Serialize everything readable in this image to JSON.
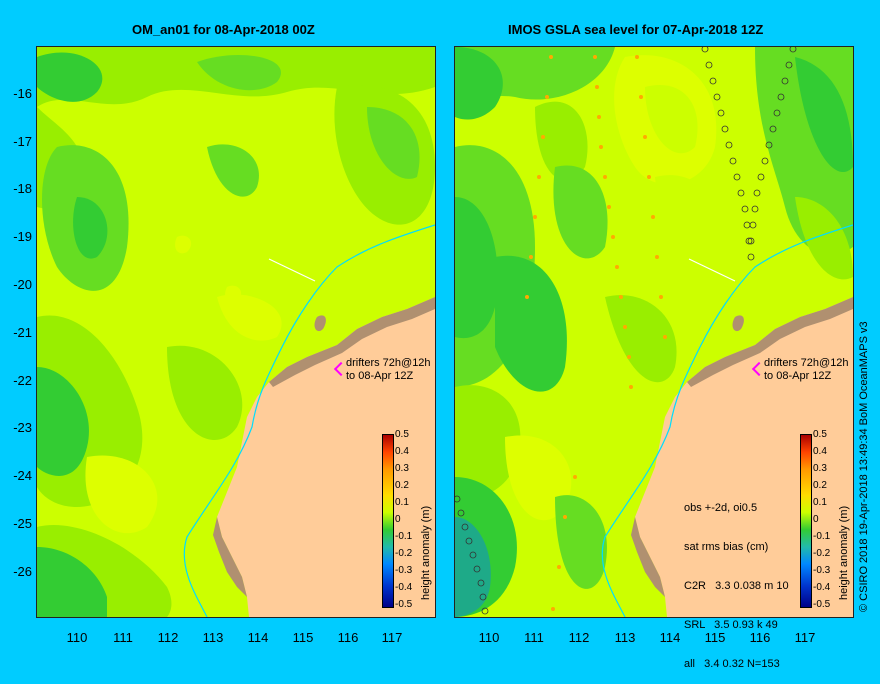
{
  "left_panel": {
    "title": "OM_an01 for 08-Apr-2018 00Z",
    "drifters_line1": "drifters 72h@12h",
    "drifters_line2": "to 08-Apr 12Z"
  },
  "right_panel": {
    "title": "IMOS GSLA sea level  for 07-Apr-2018 12Z",
    "drifters_line1": "drifters 72h@12h",
    "drifters_line2": "to 08-Apr 12Z",
    "stats": {
      "line1": "obs +-2d, oi0.5",
      "line2": "sat rms bias (cm)",
      "line3": "C2R   3.3 0.038 m 10",
      "line4": "SRL   3.5 0.93 k 49",
      "line5": "all   3.4 0.32 N=153"
    }
  },
  "y_ticks": [
    "-16",
    "-17",
    "-18",
    "-19",
    "-20",
    "-21",
    "-22",
    "-23",
    "-24",
    "-25",
    "-26"
  ],
  "x_ticks": [
    "110",
    "111",
    "112",
    "113",
    "114",
    "115",
    "116",
    "117"
  ],
  "colorbar": {
    "label": "height anomaly (m)",
    "ticks": [
      "0.5",
      "0.4",
      "0.3",
      "0.2",
      "0.1",
      "0",
      "-0.1",
      "-0.2",
      "-0.3",
      "-0.4",
      "-0.5"
    ]
  },
  "credit": "© CSIRO 2018  19-Apr-2018 13:49:34 BoM OceanMAPS v3",
  "colors": {
    "background": "#00ccff",
    "land": "#ffcc99",
    "field_light": "#ccff00",
    "field_mid": "#99ee00",
    "field_dark": "#33cc33",
    "coast": "#b09070",
    "isobath": "#00ddff",
    "drifter": "#ff00ff"
  }
}
